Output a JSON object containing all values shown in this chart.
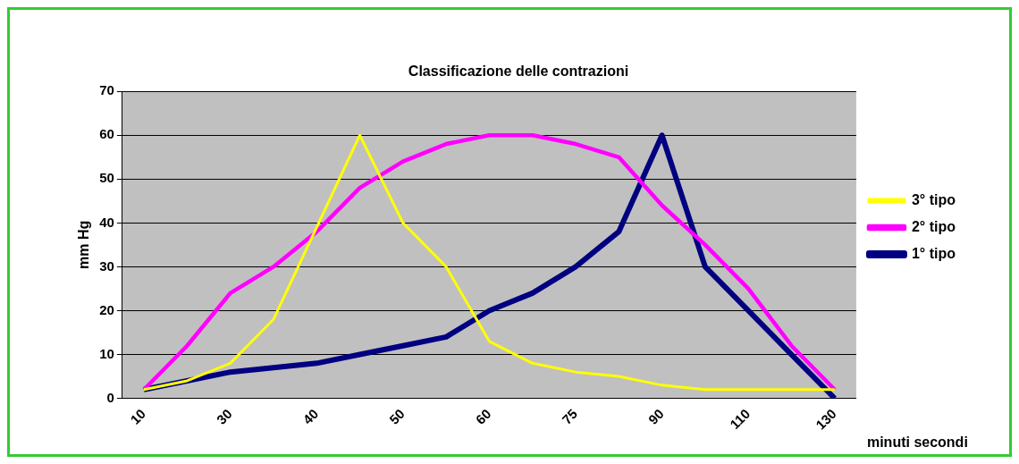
{
  "chart_data": {
    "type": "line",
    "title": "Classificazione delle contrazioni",
    "xlabel": "minuti secondi",
    "ylabel": "mm Hg",
    "categories": [
      "10",
      null,
      "30",
      null,
      "40",
      null,
      "50",
      null,
      "60",
      null,
      "75",
      null,
      "90",
      null,
      "110",
      null,
      "130"
    ],
    "series": [
      {
        "name": "1° tipo",
        "color": "#000080",
        "values": [
          2,
          4,
          6,
          7,
          8,
          10,
          12,
          14,
          20,
          24,
          30,
          38,
          60,
          30,
          20,
          10,
          0
        ]
      },
      {
        "name": "2° tipo",
        "color": "#ff00ff",
        "values": [
          2,
          12,
          24,
          30,
          38,
          48,
          54,
          58,
          60,
          60,
          58,
          55,
          44,
          35,
          25,
          12,
          2
        ]
      },
      {
        "name": "3° tipo",
        "color": "#ffff00",
        "values": [
          2,
          4,
          8,
          18,
          39,
          60,
          40,
          30,
          13,
          8,
          6,
          5,
          3,
          2,
          2,
          2,
          2
        ]
      }
    ],
    "ylim": [
      0,
      70
    ],
    "yticks": [
      0,
      10,
      20,
      30,
      40,
      50,
      60,
      70
    ],
    "grid": "y",
    "legend": "right",
    "marker": "none",
    "line_style": "solid"
  }
}
